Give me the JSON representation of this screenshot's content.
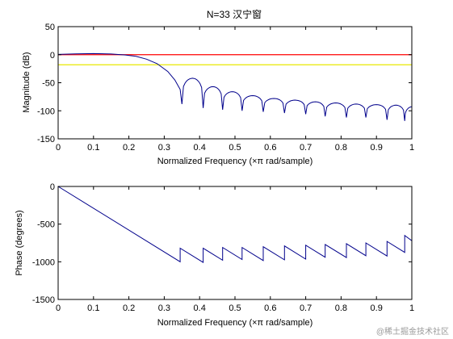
{
  "chart_data": [
    {
      "type": "line",
      "title": "N=33 汉宁窗",
      "xlabel": "Normalized Frequency  (×π rad/sample)",
      "ylabel": "Magnitude (dB)",
      "xlim": [
        0,
        1
      ],
      "ylim": [
        -150,
        50
      ],
      "xticks": [
        "0",
        "0.1",
        "0.2",
        "0.3",
        "0.4",
        "0.5",
        "0.6",
        "0.7",
        "0.8",
        "0.9",
        "1"
      ],
      "yticks": [
        "50",
        "0",
        "-50",
        "-100",
        "-150"
      ],
      "grid": false,
      "colors": {
        "response": "#00008b",
        "ref_red": "#ff0000",
        "ref_yellow": "#e8e800"
      },
      "reference_lines": [
        {
          "y": 0,
          "color": "#ff0000"
        },
        {
          "y": -18,
          "color": "#e8e800"
        }
      ],
      "passband": [
        [
          0,
          0.5
        ],
        [
          0.05,
          1.5
        ],
        [
          0.1,
          2
        ],
        [
          0.15,
          1.2
        ],
        [
          0.19,
          -0.5
        ],
        [
          0.22,
          -3
        ],
        [
          0.25,
          -8
        ],
        [
          0.28,
          -16
        ],
        [
          0.31,
          -30
        ],
        [
          0.33,
          -45
        ],
        [
          0.345,
          -62
        ]
      ],
      "sidelobes": {
        "nulls": [
          0.35,
          0.41,
          0.465,
          0.52,
          0.58,
          0.64,
          0.7,
          0.755,
          0.815,
          0.87,
          0.93,
          0.98
        ],
        "peaks": [
          -42,
          -57,
          -66,
          -73,
          -78,
          -81,
          -84,
          -86,
          -88,
          -89,
          -90,
          -91,
          -92
        ],
        "null_depths": [
          -88,
          -95,
          -98,
          -100,
          -102,
          -104,
          -106,
          -110,
          -112,
          -112,
          -116,
          -118
        ],
        "end_value": -93
      }
    },
    {
      "type": "line",
      "title": "",
      "xlabel": "Normalized Frequency  (×π rad/sample)",
      "ylabel": "Phase (degrees)",
      "xlim": [
        0,
        1
      ],
      "ylim": [
        -1500,
        0
      ],
      "xticks": [
        "0",
        "0.1",
        "0.2",
        "0.3",
        "0.4",
        "0.5",
        "0.6",
        "0.7",
        "0.8",
        "0.9",
        "1"
      ],
      "yticks": [
        "0",
        "-500",
        "-1000",
        "-1500"
      ],
      "grid": false,
      "colors": {
        "response": "#00008b"
      },
      "linear_segment": [
        [
          0,
          0
        ],
        [
          0.345,
          -1000
        ]
      ],
      "sawtooth": {
        "jumps": [
          0.345,
          0.41,
          0.465,
          0.52,
          0.58,
          0.64,
          0.7,
          0.755,
          0.815,
          0.87,
          0.93,
          0.98
        ],
        "tops": [
          -820,
          -820,
          -810,
          -810,
          -800,
          -790,
          -780,
          -770,
          -760,
          -750,
          -730,
          -650
        ],
        "end_value": -720
      }
    }
  ],
  "watermark": "@稀土掘金技术社区"
}
